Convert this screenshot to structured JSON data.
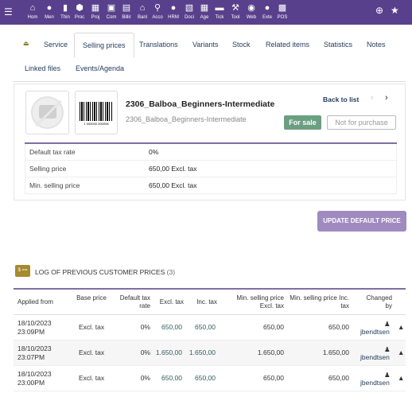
{
  "topbar": {
    "menu_icon": "hamburger-icon",
    "items": [
      {
        "label": "Hom",
        "icon": "home-icon"
      },
      {
        "label": "Men",
        "icon": "user-icon"
      },
      {
        "label": "Thin",
        "icon": "building-icon"
      },
      {
        "label": "Proc",
        "icon": "cube-icon"
      },
      {
        "label": "Proj",
        "icon": "sitemap-icon"
      },
      {
        "label": "Com",
        "icon": "briefcase-icon"
      },
      {
        "label": "Billir",
        "icon": "invoice-icon"
      },
      {
        "label": "Banl",
        "icon": "bank-icon"
      },
      {
        "label": "Acco",
        "icon": "search-dollar-icon"
      },
      {
        "label": "HRM",
        "icon": "users-icon"
      },
      {
        "label": "Doci",
        "icon": "folder-icon"
      },
      {
        "label": "Age",
        "icon": "calendar-icon"
      },
      {
        "label": "Tick",
        "icon": "ticket-icon"
      },
      {
        "label": "Tool",
        "icon": "wrench-icon"
      },
      {
        "label": "Web",
        "icon": "globe-icon"
      },
      {
        "label": "Exte",
        "icon": "puzzle-icon"
      },
      {
        "label": "POS",
        "icon": "cash-register-icon"
      }
    ],
    "right_icons": [
      "plus-circle-icon",
      "star-icon"
    ]
  },
  "tabs": [
    {
      "label": "Service",
      "active": false
    },
    {
      "label": "Selling prices",
      "active": true
    },
    {
      "label": "Translations",
      "active": false
    },
    {
      "label": "Variants",
      "active": false
    },
    {
      "label": "Stock",
      "active": false
    },
    {
      "label": "Related items",
      "active": false
    },
    {
      "label": "Statistics",
      "active": false
    },
    {
      "label": "Notes",
      "active": false
    },
    {
      "label": "Linked files",
      "active": false
    },
    {
      "label": "Events/Agenda",
      "active": false
    }
  ],
  "product": {
    "title": "2306_Balboa_Beginners-Intermediate",
    "ref": "2306_Balboa_Beginners-Intermediate",
    "barcode_text": "1 000000 000008",
    "back_to_list": "Back to list",
    "status_sale": "For sale",
    "status_purchase": "Not for purchase",
    "info": [
      {
        "label": "Default tax rate",
        "value": "0%"
      },
      {
        "label": "Selling price",
        "value": "650,00 Excl. tax"
      },
      {
        "label": "Min. selling price",
        "value": "650,00 Excl. tax"
      }
    ]
  },
  "update_button": "UPDATE DEFAULT PRICE",
  "log": {
    "icon_text": "$ ==",
    "title": "LOG OF PREVIOUS CUSTOMER PRICES",
    "count": "(3)",
    "headers": {
      "applied_from": "Applied from",
      "base_price": "Base price",
      "tax_rate": "Default tax rate",
      "excl_tax": "Excl. tax",
      "inc_tax": "Inc. tax",
      "min_excl": "Min. selling price Excl. tax",
      "min_inc": "Min. selling price Inc. tax",
      "changed_by": "Changed by"
    },
    "rows": [
      {
        "date": "18/10/2023",
        "time": "23:09PM",
        "base": "Excl. tax",
        "rate": "0%",
        "excl": "650,00",
        "inc": "650,00",
        "min_excl": "650,00",
        "min_inc": "650,00",
        "user": "jbendtsen"
      },
      {
        "date": "18/10/2023",
        "time": "23:07PM",
        "base": "Excl. tax",
        "rate": "0%",
        "excl": "1.650,00",
        "inc": "1.650,00",
        "min_excl": "1.650,00",
        "min_inc": "1.650,00",
        "user": "jbendtsen"
      },
      {
        "date": "18/10/2023",
        "time": "23:00PM",
        "base": "Excl. tax",
        "rate": "0%",
        "excl": "650,00",
        "inc": "650,00",
        "min_excl": "650,00",
        "min_inc": "650,00",
        "user": "jbendtsen"
      }
    ]
  },
  "colors": {
    "topbar": "#59408c",
    "accent": "#7d6fa3",
    "for_sale": "#6b9f81",
    "button": "#9f8bbf"
  }
}
